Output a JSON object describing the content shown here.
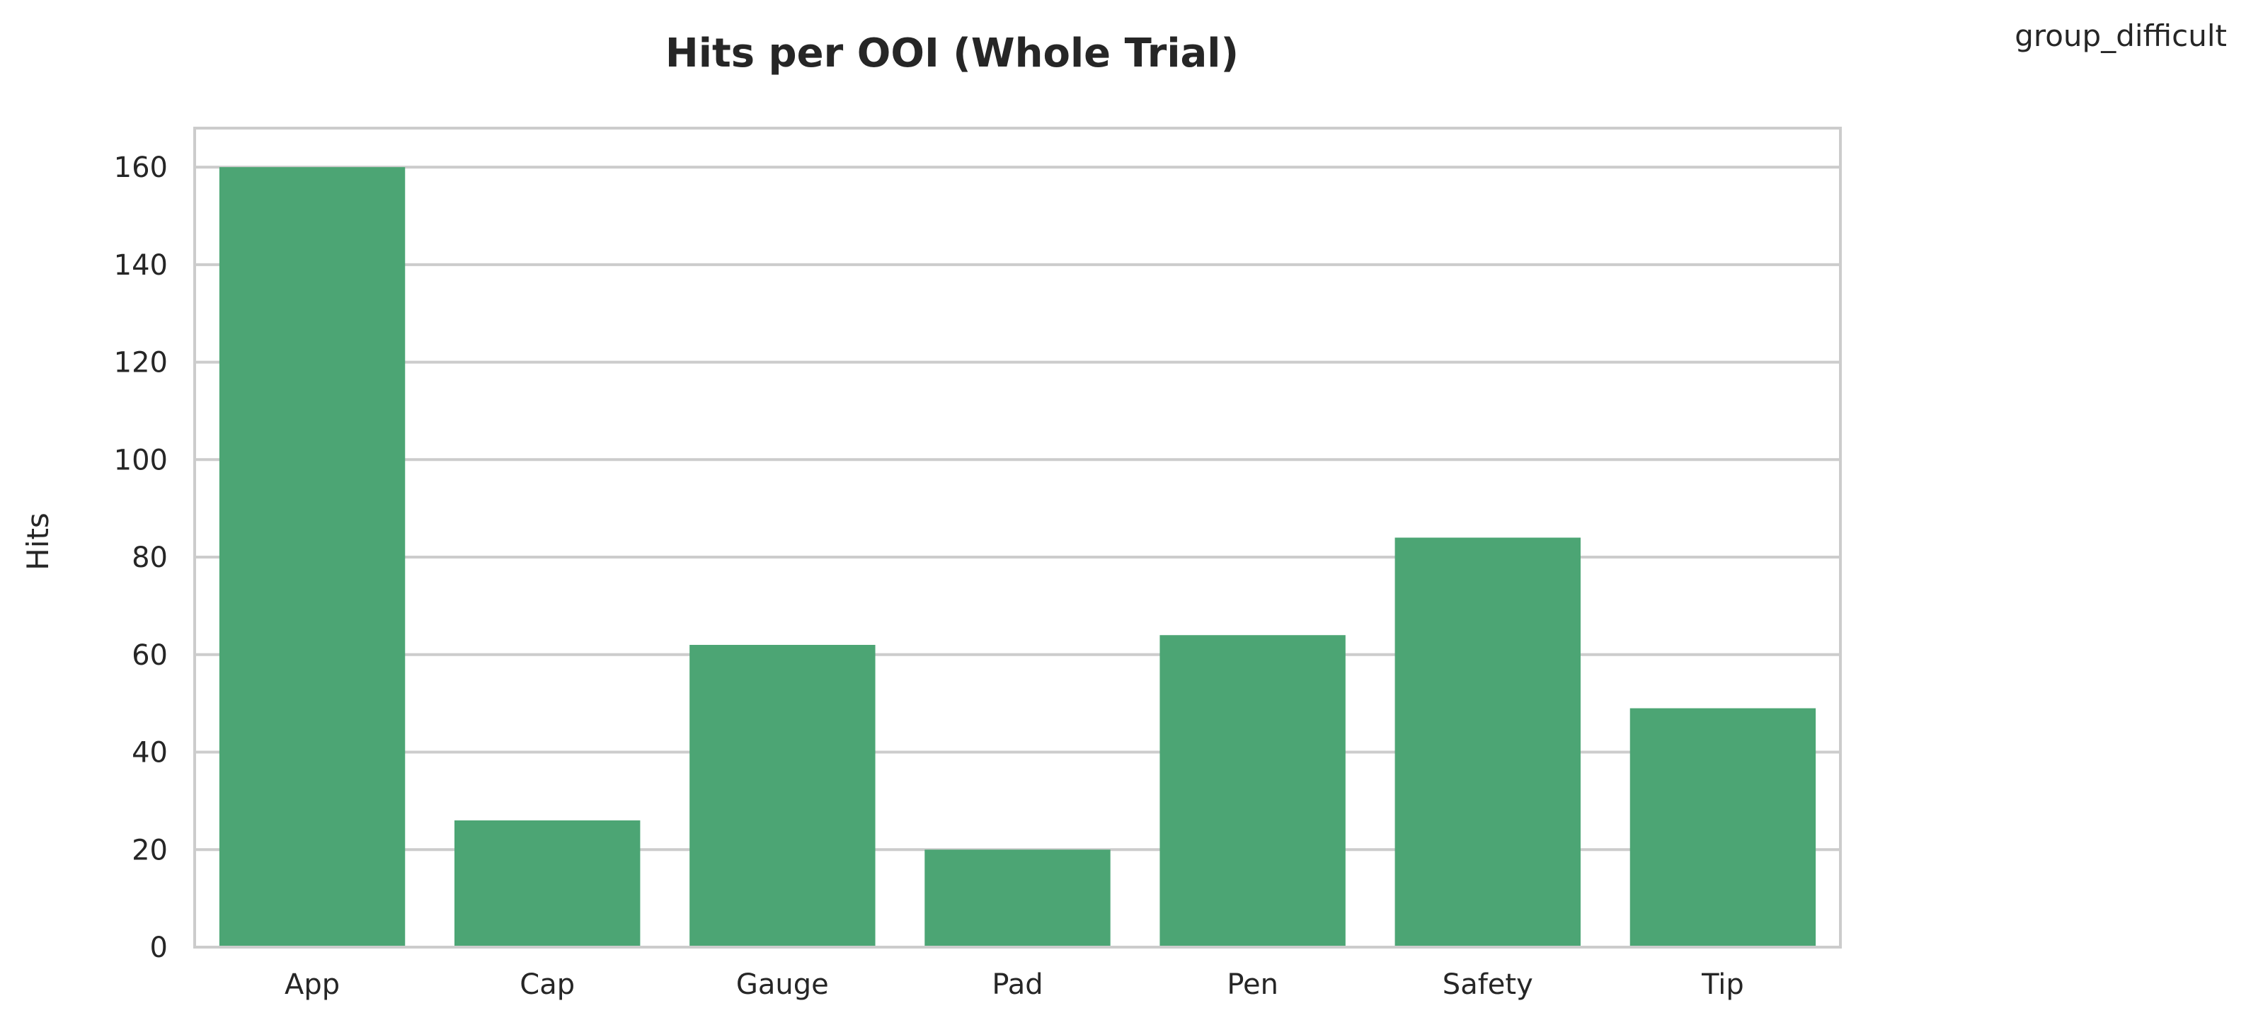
{
  "group_label": "group_difficult",
  "chart_data": {
    "type": "bar",
    "title": "Hits per OOI (Whole Trial)",
    "xlabel": "",
    "ylabel": "Hits",
    "categories": [
      "App",
      "Cap",
      "Gauge",
      "Pad",
      "Pen",
      "Safety",
      "Tip"
    ],
    "values": [
      160,
      26,
      62,
      20,
      64,
      84,
      49
    ],
    "ylim": [
      0,
      168
    ],
    "yticks": [
      0,
      20,
      40,
      60,
      80,
      100,
      120,
      140,
      160
    ],
    "grid": true,
    "legend": "none",
    "colors": {
      "bar": "#4ca574",
      "grid": "#cccccc",
      "frame": "#cccccc",
      "text": "#262626"
    }
  }
}
